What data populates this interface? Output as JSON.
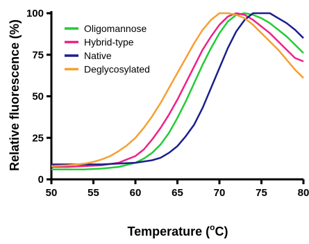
{
  "chart_data": {
    "type": "line",
    "xlabel": "Temperature (",
    "xlabel_sup": "o",
    "xlabel_tail": "C)",
    "ylabel": "Relative fluorescence (%)",
    "xlim": [
      50,
      80
    ],
    "ylim": [
      0,
      100
    ],
    "x_ticks": [
      50,
      55,
      60,
      65,
      70,
      75,
      80
    ],
    "y_ticks": [
      0,
      25,
      50,
      75,
      100
    ],
    "grid": false,
    "legend_position": "top-left",
    "series": [
      {
        "name": "Oligomannose",
        "color": "#22cc33",
        "x": [
          50,
          52,
          54,
          56,
          58,
          60,
          61,
          62,
          63,
          64,
          65,
          66,
          67,
          68,
          69,
          70,
          71,
          72,
          73,
          74,
          75,
          76,
          77,
          78,
          79,
          80
        ],
        "y": [
          6,
          6,
          6,
          6.5,
          7.5,
          10,
          12.5,
          16,
          21,
          28,
          37,
          47,
          58,
          69,
          79,
          88,
          95,
          99,
          100,
          99,
          97,
          94,
          90,
          86,
          81,
          76
        ]
      },
      {
        "name": "Hybrid-type",
        "color": "#ee2288",
        "x": [
          50,
          52,
          54,
          56,
          58,
          59,
          60,
          61,
          62,
          63,
          64,
          65,
          66,
          67,
          68,
          69,
          70,
          71,
          72,
          73,
          74,
          75,
          76,
          77,
          78,
          79,
          80
        ],
        "y": [
          7.5,
          7.5,
          8,
          8.5,
          10,
          12,
          14,
          18,
          24,
          31,
          39,
          48,
          58,
          68,
          78,
          86,
          93,
          98,
          100,
          99,
          96,
          92,
          88,
          83,
          78,
          73,
          71
        ]
      },
      {
        "name": "Native",
        "color": "#1a1f8c",
        "x": [
          50,
          52,
          54,
          56,
          58,
          60,
          62,
          63,
          64,
          65,
          66,
          67,
          68,
          69,
          70,
          71,
          72,
          73,
          74,
          75,
          76,
          77,
          78,
          79,
          80
        ],
        "y": [
          9,
          9,
          9,
          9,
          9.5,
          10,
          11.5,
          13,
          16,
          20,
          26,
          33,
          43,
          55,
          67,
          79,
          89,
          96,
          100,
          100,
          100,
          97,
          94,
          90,
          85
        ]
      },
      {
        "name": "Deglycosylated",
        "color": "#f5a030",
        "x": [
          50,
          52,
          54,
          55,
          56,
          57,
          58,
          59,
          60,
          61,
          62,
          63,
          64,
          65,
          66,
          67,
          68,
          69,
          70,
          71,
          72,
          73,
          74,
          75,
          76,
          77,
          78,
          79,
          80
        ],
        "y": [
          8,
          8.5,
          9.5,
          10.5,
          12,
          14,
          17,
          20.5,
          25,
          31,
          38,
          46,
          55,
          64,
          73,
          82,
          90,
          96,
          100,
          100,
          99,
          97,
          93,
          88,
          83,
          78,
          72,
          66,
          61
        ]
      }
    ]
  }
}
